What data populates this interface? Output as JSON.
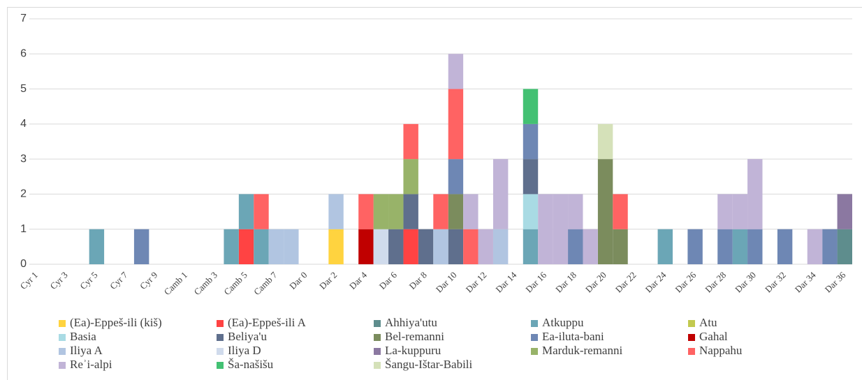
{
  "chart_data": {
    "type": "bar",
    "stacked": true,
    "categories": [
      "Cyr 1",
      null,
      "Cyr 3",
      null,
      "Cyr 5",
      null,
      "Cyr 7",
      null,
      "Cyr 9",
      null,
      "Camb 1",
      null,
      "Camb 3",
      null,
      "Camb 5",
      null,
      "Camb 7",
      null,
      "Dar 0",
      null,
      "Dar 2",
      null,
      "Dar 4",
      null,
      "Dar 6",
      null,
      "Dar 8",
      null,
      "Dar 10",
      null,
      "Dar 12",
      null,
      "Dar 14",
      null,
      "Dar 16",
      null,
      "Dar 18",
      null,
      "Dar 20",
      null,
      "Dar 22",
      null,
      "Dar 24",
      null,
      "Dar 26",
      null,
      "Dar 28",
      null,
      "Dar 30",
      null,
      "Dar 32",
      null,
      "Dar 34",
      null,
      "Dar 36"
    ],
    "series": [
      {
        "name": "(Ea)-Eppeš-ili (kiš)",
        "color": "#ffd33f",
        "values": [
          0,
          0,
          0,
          0,
          0,
          0,
          0,
          0,
          0,
          0,
          0,
          0,
          0,
          0,
          0,
          0,
          0,
          0,
          0,
          0,
          1,
          0,
          0,
          0,
          0,
          0,
          0,
          0,
          0,
          0,
          0,
          0,
          0,
          0,
          0,
          0,
          0,
          0,
          0,
          0,
          0,
          0,
          0,
          0,
          0,
          0,
          0,
          0,
          0,
          0,
          0,
          0,
          0,
          0,
          0
        ]
      },
      {
        "name": "(Ea)-Eppeš-ili A",
        "color": "#ff4343",
        "values": [
          0,
          0,
          0,
          0,
          0,
          0,
          0,
          0,
          0,
          0,
          0,
          0,
          0,
          0,
          1,
          0,
          0,
          0,
          0,
          0,
          0,
          0,
          0,
          0,
          0,
          1,
          0,
          0,
          0,
          0,
          0,
          0,
          0,
          0,
          0,
          0,
          0,
          0,
          0,
          0,
          0,
          0,
          0,
          0,
          0,
          0,
          0,
          0,
          0,
          0,
          0,
          0,
          0,
          0,
          0
        ]
      },
      {
        "name": "Ahhiya'utu",
        "color": "#5e8d8d",
        "values": [
          0,
          0,
          0,
          0,
          0,
          0,
          0,
          0,
          0,
          0,
          0,
          0,
          0,
          0,
          0,
          0,
          0,
          0,
          0,
          0,
          0,
          0,
          0,
          0,
          0,
          0,
          0,
          0,
          0,
          0,
          0,
          0,
          0,
          0,
          0,
          0,
          0,
          0,
          0,
          0,
          0,
          0,
          0,
          0,
          0,
          0,
          0,
          0,
          0,
          0,
          0,
          0,
          0,
          0,
          1
        ]
      },
      {
        "name": "Atkuppu",
        "color": "#6ba6b6",
        "values": [
          0,
          0,
          0,
          0,
          1,
          0,
          0,
          0,
          0,
          0,
          0,
          0,
          0,
          1,
          1,
          1,
          0,
          0,
          0,
          0,
          0,
          0,
          0,
          0,
          0,
          0,
          0,
          0,
          0,
          0,
          0,
          0,
          0,
          1,
          0,
          0,
          0,
          0,
          0,
          0,
          0,
          0,
          1,
          0,
          0,
          0,
          0,
          1,
          0,
          0,
          0,
          0,
          0,
          0,
          0
        ]
      },
      {
        "name": "Atu",
        "color": "#c2c94f",
        "values": [
          0,
          0,
          0,
          0,
          0,
          0,
          0,
          0,
          0,
          0,
          0,
          0,
          0,
          0,
          0,
          0,
          0,
          0,
          0,
          0,
          0,
          0,
          0,
          0,
          0,
          0,
          0,
          0,
          0,
          0,
          0,
          0,
          0,
          0,
          0,
          0,
          0,
          0,
          0,
          0,
          0,
          0,
          0,
          0,
          0,
          0,
          0,
          0,
          0,
          0,
          0,
          0,
          0,
          0,
          0
        ]
      },
      {
        "name": "Basia",
        "color": "#a9dbe4",
        "values": [
          0,
          0,
          0,
          0,
          0,
          0,
          0,
          0,
          0,
          0,
          0,
          0,
          0,
          0,
          0,
          0,
          0,
          0,
          0,
          0,
          0,
          0,
          0,
          0,
          0,
          0,
          0,
          0,
          0,
          0,
          0,
          0,
          0,
          1,
          0,
          0,
          0,
          0,
          0,
          0,
          0,
          0,
          0,
          0,
          0,
          0,
          0,
          0,
          0,
          0,
          0,
          0,
          0,
          0,
          0
        ]
      },
      {
        "name": "Beliya'u",
        "color": "#5f6f8d",
        "values": [
          0,
          0,
          0,
          0,
          0,
          0,
          0,
          0,
          0,
          0,
          0,
          0,
          0,
          0,
          0,
          0,
          0,
          0,
          0,
          0,
          0,
          0,
          0,
          0,
          1,
          1,
          1,
          0,
          1,
          0,
          0,
          0,
          0,
          1,
          0,
          0,
          0,
          0,
          0,
          0,
          0,
          0,
          0,
          0,
          0,
          0,
          0,
          0,
          0,
          0,
          0,
          0,
          0,
          0,
          0
        ]
      },
      {
        "name": "Bel-remanni",
        "color": "#7b8c5d",
        "values": [
          0,
          0,
          0,
          0,
          0,
          0,
          0,
          0,
          0,
          0,
          0,
          0,
          0,
          0,
          0,
          0,
          0,
          0,
          0,
          0,
          0,
          0,
          0,
          0,
          0,
          0,
          0,
          0,
          1,
          0,
          0,
          0,
          0,
          0,
          0,
          0,
          0,
          0,
          3,
          1,
          0,
          0,
          0,
          0,
          0,
          0,
          0,
          0,
          0,
          0,
          0,
          0,
          0,
          0,
          0
        ]
      },
      {
        "name": "Ea-iluta-bani",
        "color": "#6e87b4",
        "values": [
          0,
          0,
          0,
          0,
          0,
          0,
          0,
          1,
          0,
          0,
          0,
          0,
          0,
          0,
          0,
          0,
          0,
          0,
          0,
          0,
          0,
          0,
          0,
          0,
          0,
          0,
          0,
          0,
          1,
          0,
          0,
          0,
          0,
          1,
          0,
          0,
          1,
          0,
          0,
          0,
          0,
          0,
          0,
          0,
          1,
          0,
          1,
          0,
          1,
          0,
          1,
          0,
          0,
          1,
          0
        ]
      },
      {
        "name": "Gahal",
        "color": "#c00000",
        "values": [
          0,
          0,
          0,
          0,
          0,
          0,
          0,
          0,
          0,
          0,
          0,
          0,
          0,
          0,
          0,
          0,
          0,
          0,
          0,
          0,
          0,
          0,
          1,
          0,
          0,
          0,
          0,
          0,
          0,
          0,
          0,
          0,
          0,
          0,
          0,
          0,
          0,
          0,
          0,
          0,
          0,
          0,
          0,
          0,
          0,
          0,
          0,
          0,
          0,
          0,
          0,
          0,
          0,
          0,
          0
        ]
      },
      {
        "name": "Iliya A",
        "color": "#b1c5e1",
        "values": [
          0,
          0,
          0,
          0,
          0,
          0,
          0,
          0,
          0,
          0,
          0,
          0,
          0,
          0,
          0,
          0,
          1,
          1,
          0,
          0,
          1,
          0,
          0,
          0,
          0,
          0,
          0,
          1,
          0,
          0,
          0,
          1,
          0,
          0,
          0,
          0,
          0,
          0,
          0,
          0,
          0,
          0,
          0,
          0,
          0,
          0,
          0,
          0,
          0,
          0,
          0,
          0,
          0,
          0,
          0
        ]
      },
      {
        "name": "Iliya D",
        "color": "#d0dbec",
        "values": [
          0,
          0,
          0,
          0,
          0,
          0,
          0,
          0,
          0,
          0,
          0,
          0,
          0,
          0,
          0,
          0,
          0,
          0,
          0,
          0,
          0,
          0,
          0,
          1,
          0,
          0,
          0,
          0,
          0,
          0,
          0,
          0,
          0,
          0,
          0,
          0,
          0,
          0,
          0,
          0,
          0,
          0,
          0,
          0,
          0,
          0,
          0,
          0,
          0,
          0,
          0,
          0,
          0,
          0,
          0
        ]
      },
      {
        "name": "La-kuppuru",
        "color": "#8b78a1",
        "values": [
          0,
          0,
          0,
          0,
          0,
          0,
          0,
          0,
          0,
          0,
          0,
          0,
          0,
          0,
          0,
          0,
          0,
          0,
          0,
          0,
          0,
          0,
          0,
          0,
          0,
          0,
          0,
          0,
          0,
          0,
          0,
          0,
          0,
          0,
          0,
          0,
          0,
          0,
          0,
          0,
          0,
          0,
          0,
          0,
          0,
          0,
          0,
          0,
          0,
          0,
          0,
          0,
          0,
          0,
          1
        ]
      },
      {
        "name": "Marduk-remanni",
        "color": "#98b369",
        "values": [
          0,
          0,
          0,
          0,
          0,
          0,
          0,
          0,
          0,
          0,
          0,
          0,
          0,
          0,
          0,
          0,
          0,
          0,
          0,
          0,
          0,
          0,
          0,
          1,
          1,
          1,
          0,
          0,
          0,
          0,
          0,
          0,
          0,
          0,
          0,
          0,
          0,
          0,
          0,
          0,
          0,
          0,
          0,
          0,
          0,
          0,
          0,
          0,
          0,
          0,
          0,
          0,
          0,
          0,
          0
        ]
      },
      {
        "name": "Nappahu",
        "color": "#ff6363",
        "values": [
          0,
          0,
          0,
          0,
          0,
          0,
          0,
          0,
          0,
          0,
          0,
          0,
          0,
          0,
          0,
          1,
          0,
          0,
          0,
          0,
          0,
          0,
          1,
          0,
          0,
          1,
          0,
          1,
          2,
          1,
          0,
          0,
          0,
          0,
          0,
          0,
          0,
          0,
          0,
          1,
          0,
          0,
          0,
          0,
          0,
          0,
          0,
          0,
          0,
          0,
          0,
          0,
          0,
          0,
          0
        ]
      },
      {
        "name": "Reʾi-alpi",
        "color": "#c1b4d7",
        "values": [
          0,
          0,
          0,
          0,
          0,
          0,
          0,
          0,
          0,
          0,
          0,
          0,
          0,
          0,
          0,
          0,
          0,
          0,
          0,
          0,
          0,
          0,
          0,
          0,
          0,
          0,
          0,
          0,
          1,
          1,
          1,
          2,
          0,
          0,
          2,
          2,
          1,
          1,
          0,
          0,
          0,
          0,
          0,
          0,
          0,
          0,
          1,
          1,
          2,
          0,
          0,
          0,
          1,
          0,
          0
        ]
      },
      {
        "name": "Ša-našišu",
        "color": "#43c173",
        "values": [
          0,
          0,
          0,
          0,
          0,
          0,
          0,
          0,
          0,
          0,
          0,
          0,
          0,
          0,
          0,
          0,
          0,
          0,
          0,
          0,
          0,
          0,
          0,
          0,
          0,
          0,
          0,
          0,
          0,
          0,
          0,
          0,
          0,
          1,
          0,
          0,
          0,
          0,
          0,
          0,
          0,
          0,
          0,
          0,
          0,
          0,
          0,
          0,
          0,
          0,
          0,
          0,
          0,
          0,
          0
        ]
      },
      {
        "name": "Šangu-Ištar-Babili",
        "color": "#d5e1b9",
        "values": [
          0,
          0,
          0,
          0,
          0,
          0,
          0,
          0,
          0,
          0,
          0,
          0,
          0,
          0,
          0,
          0,
          0,
          0,
          0,
          0,
          0,
          0,
          0,
          0,
          0,
          0,
          0,
          0,
          0,
          0,
          0,
          0,
          0,
          0,
          0,
          0,
          0,
          0,
          1,
          0,
          0,
          0,
          0,
          0,
          0,
          0,
          0,
          0,
          0,
          0,
          0,
          0,
          0,
          0,
          0
        ]
      }
    ],
    "ylim": [
      0,
      7
    ],
    "yticks": [
      0,
      1,
      2,
      3,
      4,
      5,
      6,
      7
    ],
    "grid": true,
    "legend": "bottom"
  }
}
